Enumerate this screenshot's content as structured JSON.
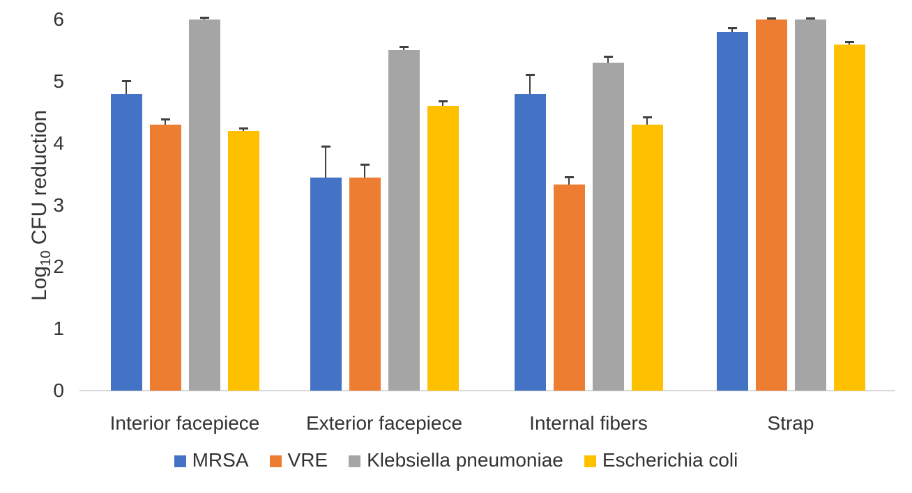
{
  "chart_data": {
    "type": "bar",
    "title": "",
    "xlabel": "",
    "ylabel": "Log10 CFU reduction",
    "ylabel_parts": {
      "pre": "Log",
      "sub": "10",
      "post": " CFU reduction"
    },
    "ylim": [
      0,
      6
    ],
    "yticks": [
      0,
      1,
      2,
      3,
      4,
      5,
      6
    ],
    "grid": false,
    "legend_position": "bottom",
    "error_bars": "upper",
    "error_bar_color": "#404040",
    "axis_line_color": "#d9d9d9",
    "text_color": "#333333",
    "categories": [
      "Interior facepiece",
      "Exterior facepiece",
      "Internal fibers",
      "Strap"
    ],
    "series": [
      {
        "name": "MRSA",
        "color": "#4472c4",
        "values": [
          4.8,
          3.45,
          4.8,
          5.8
        ],
        "errors": [
          0.2,
          0.5,
          0.3,
          0.06
        ]
      },
      {
        "name": "VRE",
        "color": "#ed7d31",
        "values": [
          4.3,
          3.45,
          3.33,
          6.0
        ],
        "errors": [
          0.08,
          0.2,
          0.12,
          0.02
        ]
      },
      {
        "name": "Klebsiella pneumoniae",
        "color": "#a5a5a5",
        "values": [
          6.0,
          5.5,
          5.3,
          6.0
        ],
        "errors": [
          0.03,
          0.05,
          0.1,
          0.02
        ]
      },
      {
        "name": "Escherichia coli",
        "color": "#ffc000",
        "values": [
          4.2,
          4.6,
          4.3,
          5.6
        ],
        "errors": [
          0.04,
          0.08,
          0.12,
          0.03
        ]
      }
    ]
  }
}
